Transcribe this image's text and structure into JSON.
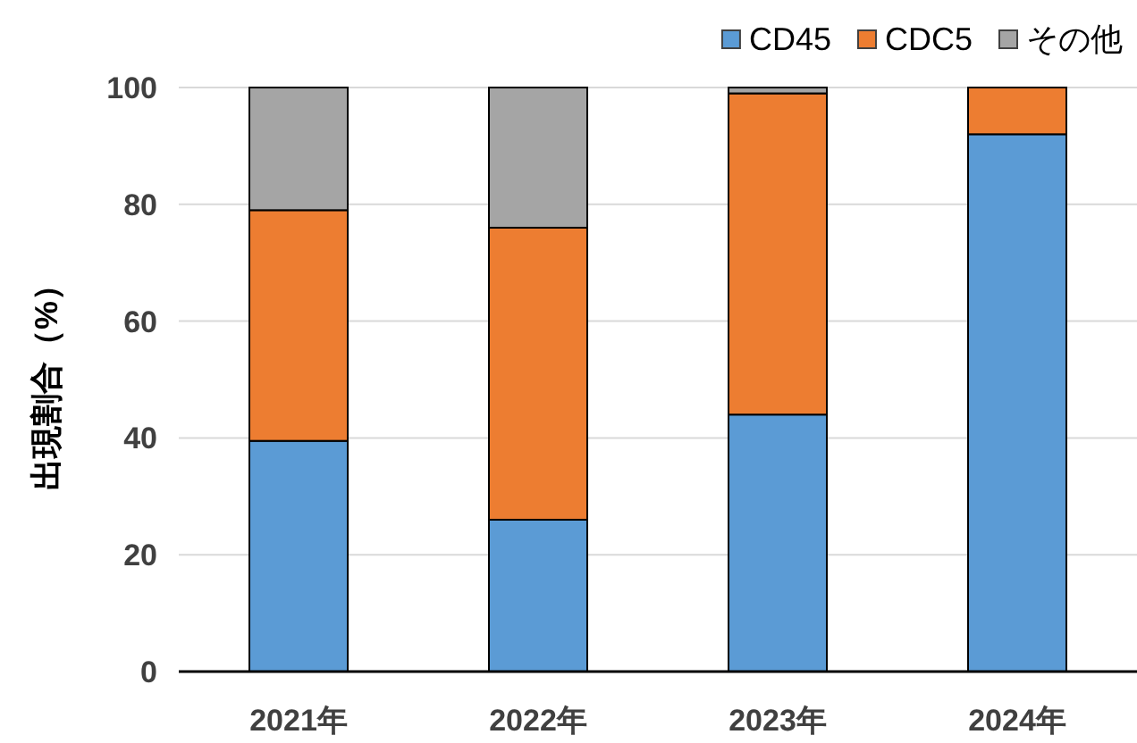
{
  "chart_data": {
    "type": "bar",
    "ylabel": "出現割合（%）",
    "categories": [
      "2021年",
      "2022年",
      "2023年",
      "2024年"
    ],
    "series": [
      {
        "name": "CD45",
        "color": "#5b9bd5",
        "values": [
          39.5,
          26,
          44,
          92
        ]
      },
      {
        "name": "CDC5",
        "color": "#ed7d31",
        "values": [
          39.5,
          50,
          55,
          8
        ]
      },
      {
        "name": "その他",
        "color": "#a5a5a5",
        "values": [
          21,
          24,
          1,
          0
        ]
      }
    ],
    "stacked": true,
    "ylim": [
      0,
      100
    ],
    "yticks": [
      0,
      20,
      40,
      60,
      80,
      100
    ],
    "grid": "y",
    "legend": "top right"
  }
}
